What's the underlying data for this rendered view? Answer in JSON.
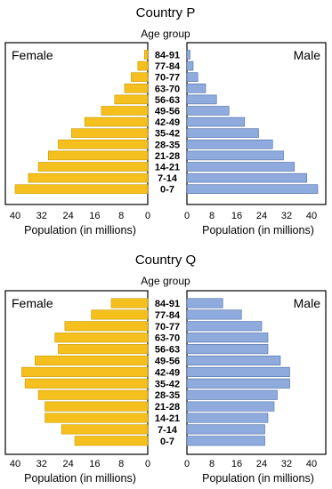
{
  "chart_data": [
    {
      "type": "bar",
      "orientation": "horizontal",
      "title": "Country P",
      "category_header": "Age group",
      "categories": [
        "84-91",
        "77-84",
        "70-77",
        "63-70",
        "56-63",
        "49-56",
        "42-49",
        "35-42",
        "28-35",
        "21-28",
        "14-21",
        "7-14",
        "0-7"
      ],
      "series": [
        {
          "name": "Female",
          "values": [
            1,
            3,
            5,
            7,
            10,
            14,
            19,
            23,
            27,
            30,
            33,
            36,
            40
          ]
        },
        {
          "name": "Male",
          "values": [
            1,
            2,
            3.5,
            6,
            9.5,
            13.5,
            18.5,
            23,
            27.5,
            31,
            34.5,
            38.5,
            42
          ]
        }
      ],
      "xlabel": "Population (in millions)",
      "xlim": [
        0,
        40
      ],
      "female_ticks": [
        "40",
        "32",
        "24",
        "16",
        "8",
        "0"
      ],
      "male_ticks": [
        "0",
        "8",
        "16",
        "24",
        "32",
        "40"
      ],
      "colors": {
        "female": "#f5c01e",
        "male": "#8faadc"
      }
    },
    {
      "type": "bar",
      "orientation": "horizontal",
      "title": "Country Q",
      "category_header": "Age group",
      "categories": [
        "84-91",
        "77-84",
        "70-77",
        "63-70",
        "56-63",
        "49-56",
        "42-49",
        "35-42",
        "28-35",
        "21-28",
        "14-21",
        "7-14",
        "0-7"
      ],
      "series": [
        {
          "name": "Female",
          "values": [
            11,
            17,
            25,
            28,
            27,
            34,
            38,
            37,
            33,
            31,
            31,
            26,
            22
          ]
        },
        {
          "name": "Male",
          "values": [
            11.5,
            17.5,
            24,
            26,
            26,
            30,
            33,
            33,
            29,
            28,
            26,
            25,
            25
          ]
        }
      ],
      "xlabel": "Population (in millions)",
      "xlim": [
        0,
        40
      ],
      "female_ticks": [
        "40",
        "32",
        "24",
        "16",
        "8",
        "0"
      ],
      "male_ticks": [
        "0",
        "8",
        "16",
        "24",
        "32",
        "40"
      ],
      "colors": {
        "female": "#f5c01e",
        "male": "#8faadc"
      }
    }
  ]
}
